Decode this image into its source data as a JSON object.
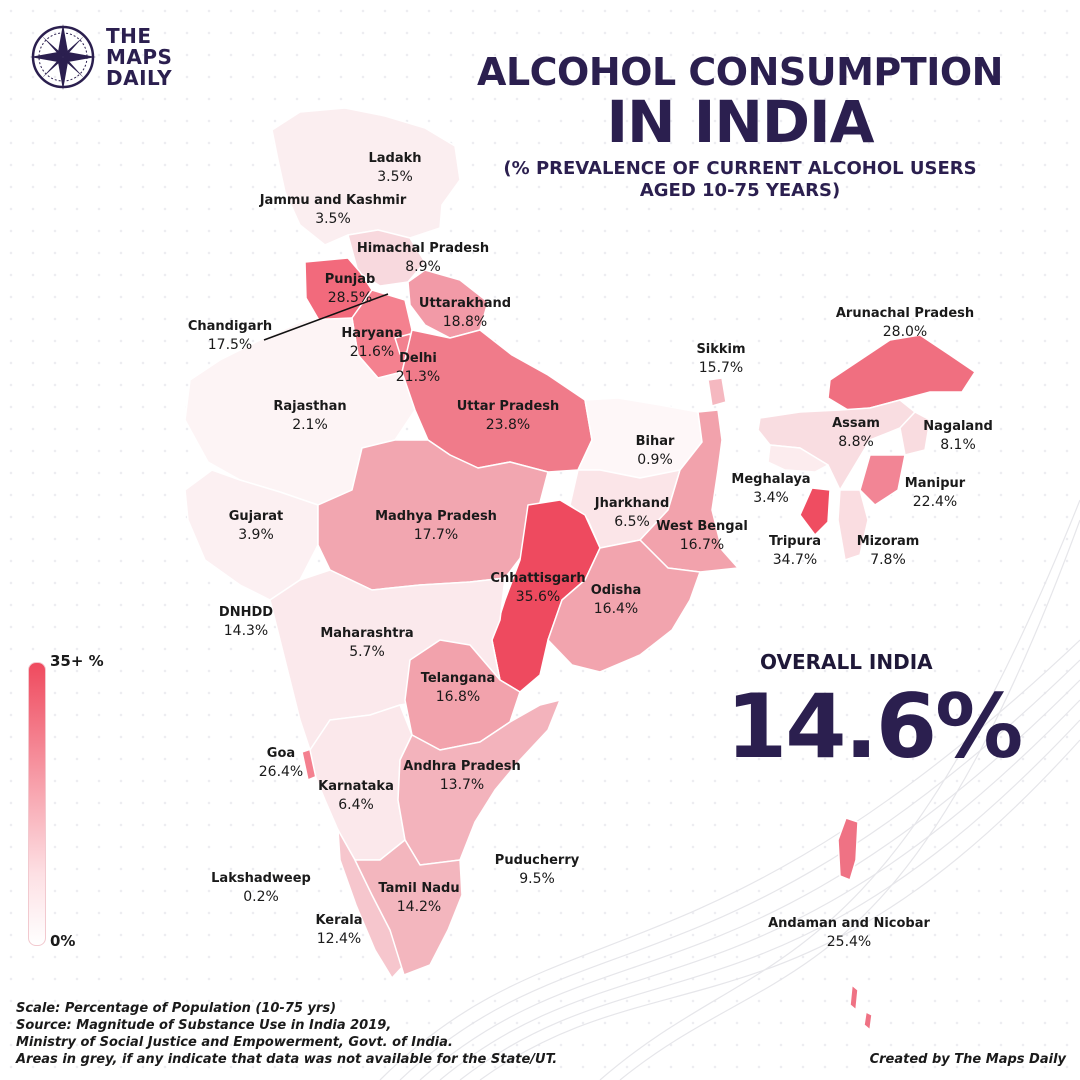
{
  "logo": {
    "line1": "THE",
    "line2": "MAPS",
    "line3": "DAILY"
  },
  "title": {
    "line1": "ALCOHOL CONSUMPTION",
    "line2": "IN INDIA",
    "subtitle1": "(% PREVALENCE OF CURRENT ALCOHOL USERS",
    "subtitle2": "AGED 10-75 YEARS)"
  },
  "regions": [
    {
      "name": "Ladakh",
      "value": "3.5%"
    },
    {
      "name": "Jammu and Kashmir",
      "value": "3.5%"
    },
    {
      "name": "Himachal Pradesh",
      "value": "8.9%"
    },
    {
      "name": "Punjab",
      "value": "28.5%"
    },
    {
      "name": "Chandigarh",
      "value": "17.5%"
    },
    {
      "name": "Uttarakhand",
      "value": "18.8%"
    },
    {
      "name": "Haryana",
      "value": "21.6%"
    },
    {
      "name": "Delhi",
      "value": "21.3%"
    },
    {
      "name": "Rajasthan",
      "value": "2.1%"
    },
    {
      "name": "Uttar Pradesh",
      "value": "23.8%"
    },
    {
      "name": "Bihar",
      "value": "0.9%"
    },
    {
      "name": "Sikkim",
      "value": "15.7%"
    },
    {
      "name": "Arunachal Pradesh",
      "value": "28.0%"
    },
    {
      "name": "Assam",
      "value": "8.8%"
    },
    {
      "name": "Nagaland",
      "value": "8.1%"
    },
    {
      "name": "Meghalaya",
      "value": "3.4%"
    },
    {
      "name": "Manipur",
      "value": "22.4%"
    },
    {
      "name": "Tripura",
      "value": "34.7%"
    },
    {
      "name": "Mizoram",
      "value": "7.8%"
    },
    {
      "name": "Gujarat",
      "value": "3.9%"
    },
    {
      "name": "Madhya Pradesh",
      "value": "17.7%"
    },
    {
      "name": "Jharkhand",
      "value": "6.5%"
    },
    {
      "name": "West Bengal",
      "value": "16.7%"
    },
    {
      "name": "Chhattisgarh",
      "value": "35.6%"
    },
    {
      "name": "Odisha",
      "value": "16.4%"
    },
    {
      "name": "DNHDD",
      "value": "14.3%"
    },
    {
      "name": "Maharashtra",
      "value": "5.7%"
    },
    {
      "name": "Telangana",
      "value": "16.8%"
    },
    {
      "name": "Goa",
      "value": "26.4%"
    },
    {
      "name": "Karnataka",
      "value": "6.4%"
    },
    {
      "name": "Andhra Pradesh",
      "value": "13.7%"
    },
    {
      "name": "Puducherry",
      "value": "9.5%"
    },
    {
      "name": "Lakshadweep",
      "value": "0.2%"
    },
    {
      "name": "Tamil Nadu",
      "value": "14.2%"
    },
    {
      "name": "Kerala",
      "value": "12.4%"
    },
    {
      "name": "Andaman and Nicobar",
      "value": "25.4%"
    }
  ],
  "legend": {
    "top": "35+ %",
    "bottom": "0%",
    "colors": {
      "high": "#ef4a5e",
      "low": "#ffffff"
    }
  },
  "overall": {
    "label": "OVERALL INDIA",
    "value": "14.6%"
  },
  "notes": {
    "line1": "Scale: Percentage of Population (10-75 yrs)",
    "line2": "Source: Magnitude of Substance Use in India 2019,",
    "line3": "Ministry of Social Justice and Empowerment, Govt. of India.",
    "line4": "Areas in grey, if any indicate that data was not available for the State/UT."
  },
  "credit": "Created by The Maps Daily"
}
